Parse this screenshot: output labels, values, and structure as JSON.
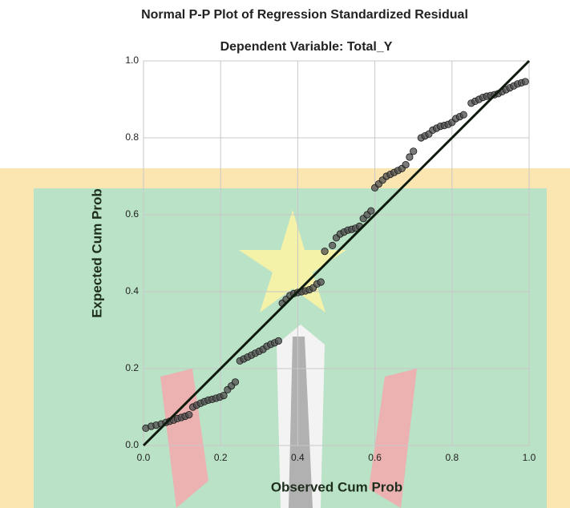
{
  "chart_data": {
    "type": "scatter",
    "title": "Normal P-P Plot of Regression Standardized Residual",
    "subtitle": "Dependent Variable: Total_Y",
    "x_label": "Observed Cum Prob",
    "y_label": "Expected Cum Prob",
    "xlim": [
      0,
      1
    ],
    "ylim": [
      0,
      1
    ],
    "xticks": [
      {
        "value": 0,
        "label": "0.0"
      },
      0.2,
      0.4,
      0.6,
      0.8,
      {
        "value": 1,
        "label": "1.0"
      }
    ],
    "yticks": [
      {
        "value": 0,
        "label": "0.0"
      },
      0.2,
      0.4,
      0.6,
      0.8,
      {
        "value": 1,
        "label": "1.0"
      }
    ],
    "grid": true,
    "color": "#4d4d4d",
    "reference_line_color": "#0d1a0d",
    "x": [
      0.006,
      0.02,
      0.033,
      0.046,
      0.058,
      0.068,
      0.078,
      0.088,
      0.098,
      0.108,
      0.118,
      0.128,
      0.138,
      0.148,
      0.158,
      0.168,
      0.178,
      0.188,
      0.198,
      0.208,
      0.218,
      0.228,
      0.238,
      0.25,
      0.26,
      0.27,
      0.28,
      0.29,
      0.3,
      0.31,
      0.32,
      0.33,
      0.34,
      0.35,
      0.36,
      0.37,
      0.38,
      0.39,
      0.4,
      0.41,
      0.42,
      0.43,
      0.44,
      0.45,
      0.46,
      0.47,
      0.49,
      0.5,
      0.51,
      0.52,
      0.53,
      0.54,
      0.55,
      0.56,
      0.57,
      0.58,
      0.59,
      0.6,
      0.61,
      0.62,
      0.63,
      0.64,
      0.65,
      0.66,
      0.67,
      0.68,
      0.69,
      0.7,
      0.72,
      0.73,
      0.74,
      0.75,
      0.76,
      0.77,
      0.78,
      0.79,
      0.8,
      0.81,
      0.82,
      0.83,
      0.85,
      0.86,
      0.87,
      0.88,
      0.89,
      0.9,
      0.91,
      0.92,
      0.93,
      0.94,
      0.95,
      0.96,
      0.97,
      0.98,
      0.99
    ],
    "values": [
      0.045,
      0.05,
      0.053,
      0.056,
      0.06,
      0.063,
      0.066,
      0.07,
      0.073,
      0.076,
      0.08,
      0.1,
      0.105,
      0.11,
      0.114,
      0.118,
      0.12,
      0.123,
      0.126,
      0.13,
      0.145,
      0.155,
      0.165,
      0.22,
      0.225,
      0.23,
      0.235,
      0.24,
      0.245,
      0.25,
      0.258,
      0.263,
      0.267,
      0.272,
      0.37,
      0.38,
      0.39,
      0.395,
      0.398,
      0.4,
      0.402,
      0.405,
      0.41,
      0.42,
      0.425,
      0.505,
      0.52,
      0.54,
      0.55,
      0.555,
      0.56,
      0.562,
      0.565,
      0.57,
      0.59,
      0.6,
      0.61,
      0.67,
      0.68,
      0.69,
      0.7,
      0.705,
      0.71,
      0.715,
      0.72,
      0.73,
      0.75,
      0.765,
      0.8,
      0.805,
      0.81,
      0.82,
      0.825,
      0.83,
      0.832,
      0.835,
      0.84,
      0.85,
      0.855,
      0.86,
      0.89,
      0.895,
      0.9,
      0.905,
      0.908,
      0.91,
      0.912,
      0.915,
      0.92,
      0.925,
      0.93,
      0.935,
      0.94,
      0.943,
      0.946
    ]
  }
}
